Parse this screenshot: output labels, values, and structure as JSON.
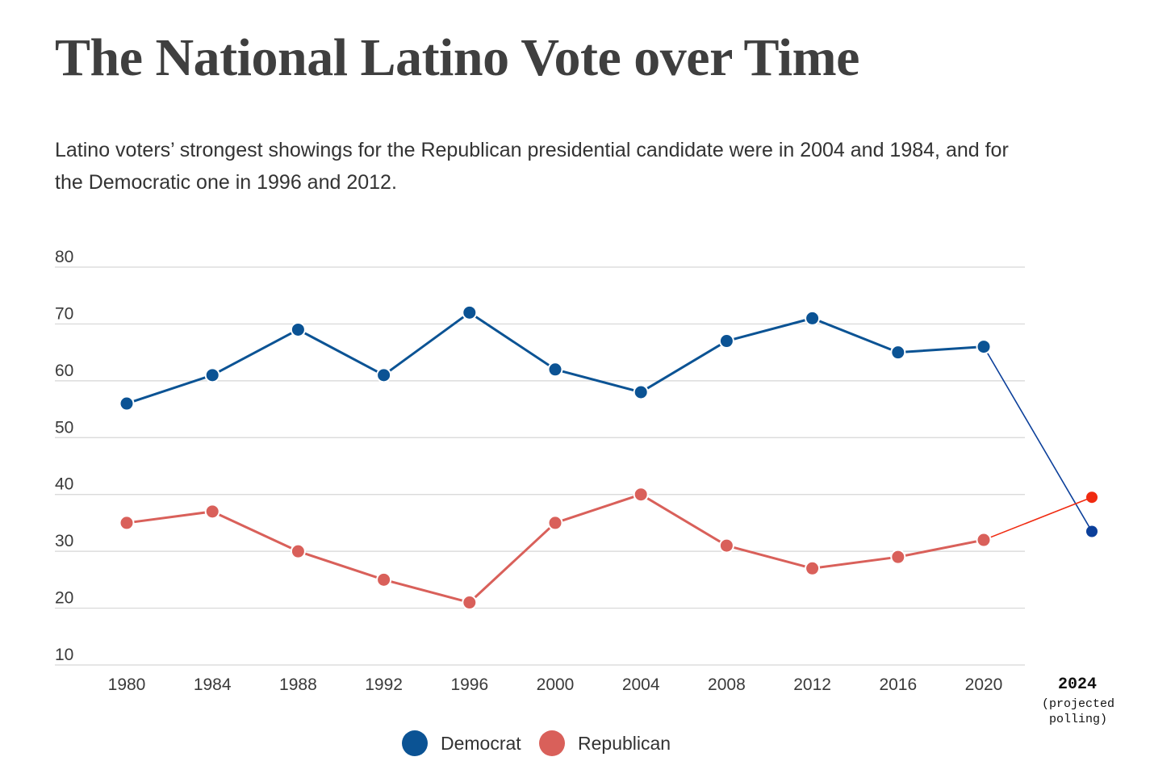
{
  "chart_data": {
    "type": "line",
    "title": "The National Latino Vote over Time",
    "subtitle": "Latino voters’ strongest showings for the Republican presidential candidate were in 2004 and 1984, and for the Democratic one in 1996 and 2012.",
    "categories": [
      "1980",
      "1984",
      "1988",
      "1992",
      "1996",
      "2000",
      "2004",
      "2008",
      "2012",
      "2016",
      "2020",
      "2024"
    ],
    "projected_label": "2024",
    "projected_note": [
      "(projected",
      "polling)"
    ],
    "yticks": [
      10,
      20,
      30,
      40,
      50,
      60,
      70,
      80
    ],
    "ylim": [
      10,
      80
    ],
    "grid": true,
    "legend_position": "bottom",
    "series": [
      {
        "name": "Democrat",
        "color": "#0b5394",
        "projected_color": "#0b3f9a",
        "values": [
          56,
          61,
          69,
          61,
          72,
          62,
          58,
          67,
          71,
          65,
          66,
          33.5
        ]
      },
      {
        "name": "Republican",
        "color": "#d9605a",
        "projected_color": "#f02a10",
        "values": [
          35,
          37,
          30,
          25,
          21,
          35,
          40,
          31,
          27,
          29,
          32,
          39.5
        ]
      }
    ]
  }
}
